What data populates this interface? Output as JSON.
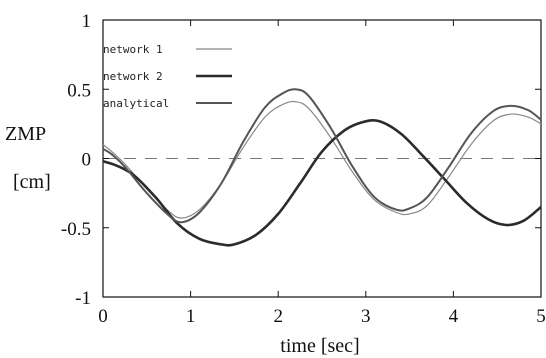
{
  "chart_data": {
    "type": "line",
    "title": "",
    "xlabel": "time [sec]",
    "ylabel_line1": "ZMP",
    "ylabel_line2": "[cm]",
    "xlim": [
      0,
      5
    ],
    "ylim": [
      -1,
      1
    ],
    "x_ticks": [
      0,
      1,
      2,
      3,
      4,
      5
    ],
    "y_ticks": [
      -1,
      -0.5,
      0,
      0.5,
      1
    ],
    "x_tick_labels": [
      "0",
      "1",
      "2",
      "3",
      "4",
      "5"
    ],
    "y_tick_labels": [
      "-1",
      "-0.5",
      "0",
      "0.5",
      "1"
    ],
    "grid": false,
    "zero_line": "dashed",
    "legend_position": "top-left",
    "series": [
      {
        "name": "network 1",
        "color": "#888888",
        "x": [
          0.0,
          0.1,
          0.25,
          0.5,
          0.75,
          0.9,
          1.1,
          1.35,
          1.6,
          1.85,
          2.05,
          2.2,
          2.35,
          2.6,
          2.85,
          3.1,
          3.35,
          3.5,
          3.7,
          3.95,
          4.2,
          4.45,
          4.65,
          4.85,
          5.0
        ],
        "y": [
          0.1,
          0.05,
          -0.04,
          -0.22,
          -0.38,
          -0.43,
          -0.37,
          -0.18,
          0.08,
          0.3,
          0.39,
          0.41,
          0.36,
          0.15,
          -0.1,
          -0.3,
          -0.39,
          -0.4,
          -0.34,
          -0.13,
          0.1,
          0.27,
          0.32,
          0.3,
          0.25
        ]
      },
      {
        "name": "network 2",
        "color": "#2b2b2b",
        "x": [
          0.0,
          0.15,
          0.35,
          0.6,
          0.85,
          1.1,
          1.35,
          1.5,
          1.75,
          2.0,
          2.25,
          2.5,
          2.75,
          2.95,
          3.15,
          3.4,
          3.65,
          3.9,
          4.15,
          4.4,
          4.6,
          4.8,
          5.0
        ],
        "y": [
          -0.02,
          -0.05,
          -0.12,
          -0.28,
          -0.47,
          -0.58,
          -0.62,
          -0.62,
          -0.55,
          -0.4,
          -0.18,
          0.05,
          0.2,
          0.26,
          0.27,
          0.18,
          0.02,
          -0.15,
          -0.32,
          -0.44,
          -0.48,
          -0.45,
          -0.35
        ]
      },
      {
        "name": "analytical",
        "color": "#555555",
        "x": [
          0.0,
          0.1,
          0.25,
          0.5,
          0.75,
          0.9,
          1.1,
          1.35,
          1.6,
          1.85,
          2.05,
          2.2,
          2.35,
          2.6,
          2.85,
          3.1,
          3.35,
          3.5,
          3.7,
          3.95,
          4.2,
          4.45,
          4.65,
          4.85,
          5.0
        ],
        "y": [
          0.07,
          0.03,
          -0.06,
          -0.25,
          -0.41,
          -0.46,
          -0.39,
          -0.18,
          0.12,
          0.37,
          0.47,
          0.5,
          0.45,
          0.22,
          -0.06,
          -0.28,
          -0.37,
          -0.36,
          -0.28,
          -0.06,
          0.18,
          0.34,
          0.38,
          0.35,
          0.28
        ]
      }
    ]
  }
}
